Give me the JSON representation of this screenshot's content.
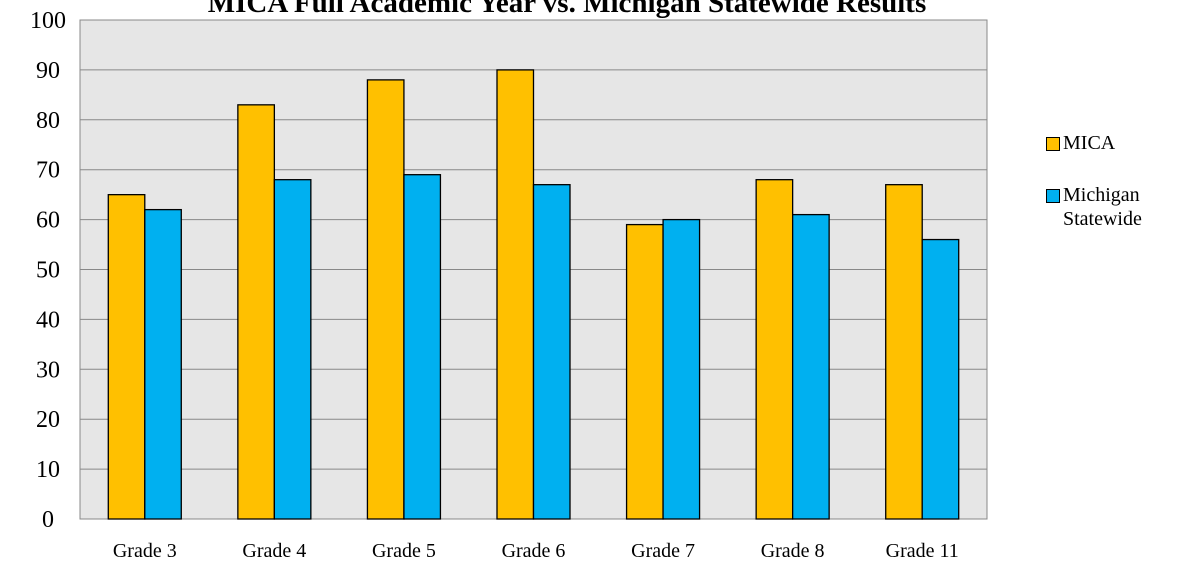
{
  "chart_data": {
    "type": "bar",
    "title": "MICA Full Academic Year vs. Michigan Statewide Results",
    "categories": [
      "Grade 3",
      "Grade 4",
      "Grade 5",
      "Grade 6",
      "Grade 7",
      "Grade 8",
      "Grade 11"
    ],
    "series": [
      {
        "name": "MICA",
        "color": "#ffc000",
        "values": [
          65,
          83,
          88,
          90,
          59,
          68,
          67
        ]
      },
      {
        "name": "Michigan Statewide",
        "color": "#00b0f0",
        "values": [
          62,
          68,
          69,
          67,
          60,
          61,
          56
        ]
      }
    ],
    "ylim": [
      0,
      100
    ],
    "yticks": [
      0,
      10,
      20,
      30,
      40,
      50,
      60,
      70,
      80,
      90,
      100
    ],
    "grid": true,
    "legend": "right"
  }
}
